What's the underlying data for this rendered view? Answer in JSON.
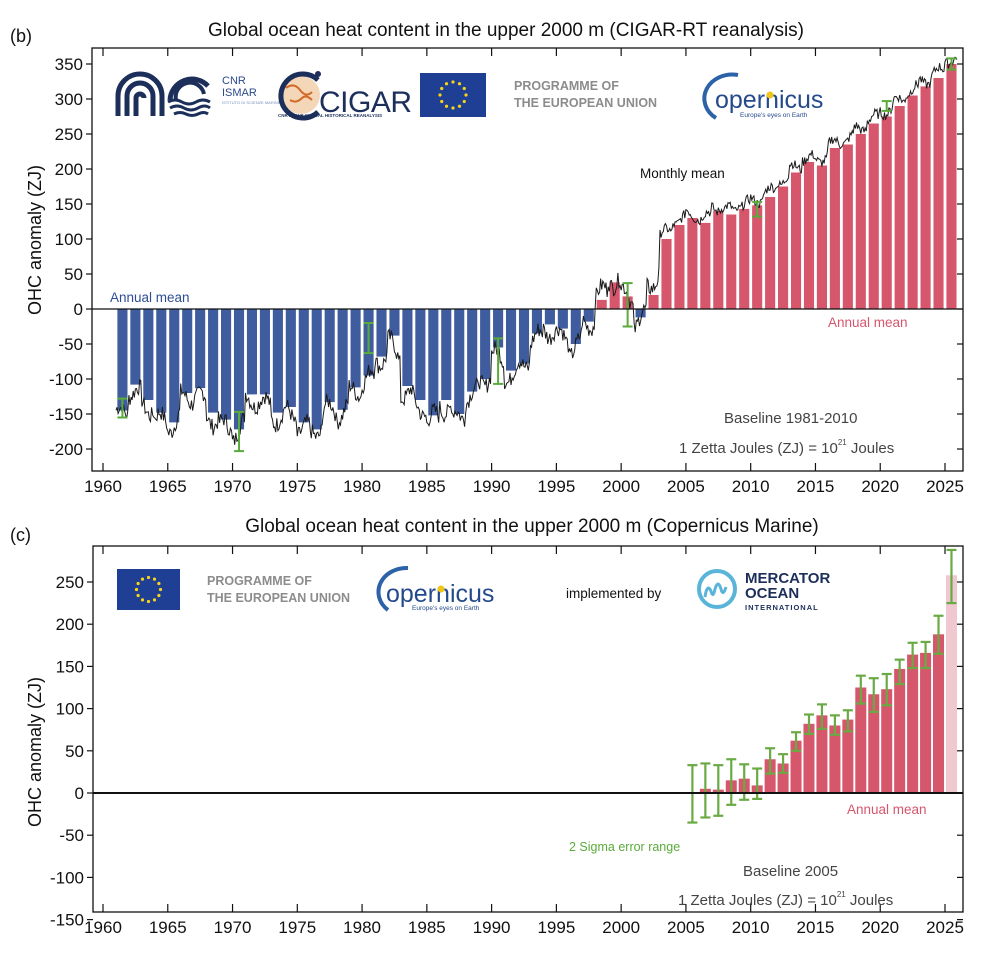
{
  "chart_data": [
    {
      "panel_label": "(b)",
      "type": "bar",
      "title": "Global ocean heat content in the upper 2000 m (CIGAR-RT reanalysis)",
      "xlabel": "",
      "ylabel": "OHC anomaly (ZJ)",
      "xlim": [
        1958,
        2027
      ],
      "ylim": [
        -210,
        370
      ],
      "xticks": [
        1960,
        1965,
        1970,
        1975,
        1980,
        1985,
        1990,
        1995,
        2000,
        2005,
        2010,
        2015,
        2020,
        2025
      ],
      "yticks": [
        -200,
        -150,
        -100,
        -50,
        0,
        50,
        100,
        150,
        200,
        250,
        300,
        350
      ],
      "grid": false,
      "colors": {
        "negative": "#3f5c9e",
        "positive": "#d6566c",
        "monthly": "#1a1a1a",
        "error": "#5aab3c"
      },
      "categories": [
        1961,
        1962,
        1963,
        1964,
        1965,
        1966,
        1967,
        1968,
        1969,
        1970,
        1971,
        1972,
        1973,
        1974,
        1975,
        1976,
        1977,
        1978,
        1979,
        1980,
        1981,
        1982,
        1983,
        1984,
        1985,
        1986,
        1987,
        1988,
        1989,
        1990,
        1991,
        1992,
        1993,
        1994,
        1995,
        1996,
        1997,
        1998,
        1999,
        2000,
        2001,
        2002,
        2003,
        2004,
        2005,
        2006,
        2007,
        2008,
        2009,
        2010,
        2011,
        2012,
        2013,
        2014,
        2015,
        2016,
        2017,
        2018,
        2019,
        2020,
        2021,
        2022,
        2023,
        2024,
        2025
      ],
      "values": [
        -145,
        -108,
        -130,
        -148,
        -162,
        -120,
        -113,
        -148,
        -158,
        -172,
        -122,
        -122,
        -148,
        -140,
        -162,
        -172,
        -133,
        -144,
        -112,
        -95,
        -68,
        -38,
        -110,
        -130,
        -152,
        -130,
        -150,
        -118,
        -100,
        -55,
        -88,
        -78,
        -35,
        -22,
        -28,
        -50,
        -18,
        13,
        38,
        18,
        -12,
        20,
        100,
        120,
        130,
        123,
        140,
        135,
        143,
        148,
        160,
        175,
        195,
        210,
        205,
        230,
        235,
        250,
        265,
        275,
        290,
        305,
        318,
        330,
        350
      ],
      "series": [
        {
          "name": "Annual mean",
          "values_ref": "values"
        },
        {
          "name": "Monthly mean",
          "values_ref": "monthly"
        }
      ],
      "error_bars": [
        {
          "year": 1961,
          "low": -155,
          "high": -128
        },
        {
          "year": 1970,
          "low": -203,
          "high": -147
        },
        {
          "year": 1980,
          "low": -63,
          "high": -20
        },
        {
          "year": 1990,
          "low": -107,
          "high": -42
        },
        {
          "year": 2000,
          "low": -25,
          "high": 37
        },
        {
          "year": 2010,
          "low": 132,
          "high": 153
        },
        {
          "year": 2020,
          "low": 283,
          "high": 297
        },
        {
          "year": 2025,
          "low": 342,
          "high": 358
        }
      ],
      "annotations": [
        {
          "text": "Annual mean",
          "color": "#3f5c9e",
          "position": "upper-left-of-zero"
        },
        {
          "text": "Annual mean",
          "color": "#d6566c",
          "position": "below-zero-right"
        },
        {
          "text": "Monthly mean",
          "color": "#111111",
          "position": "middle-right"
        },
        {
          "text": "Baseline 1981-2010",
          "color": "#444444",
          "position": "bottom-right"
        },
        {
          "text": "1 Zetta Joules (ZJ) = 10^21 Joules",
          "color": "#444444",
          "position": "bottom-right"
        }
      ],
      "legend": "none"
    },
    {
      "panel_label": "(c)",
      "type": "bar",
      "title": "Global ocean heat content in the upper 2000 m (Copernicus Marine)",
      "xlabel": "",
      "ylabel": "OHC anomaly (ZJ)",
      "xlim": [
        1958,
        2027
      ],
      "ylim": [
        -160,
        290
      ],
      "xticks": [
        1960,
        1965,
        1970,
        1975,
        1980,
        1985,
        1990,
        1995,
        2000,
        2005,
        2010,
        2015,
        2020,
        2025
      ],
      "yticks": [
        -150,
        -100,
        -50,
        0,
        50,
        100,
        150,
        200,
        250
      ],
      "grid": false,
      "colors": {
        "bar": "#d6566c",
        "provisional": "#f0c8d0",
        "error": "#6aaa44"
      },
      "categories": [
        2005,
        2006,
        2007,
        2008,
        2009,
        2010,
        2011,
        2012,
        2013,
        2014,
        2015,
        2016,
        2017,
        2018,
        2019,
        2020,
        2021,
        2022,
        2023,
        2024,
        2025
      ],
      "values": [
        0,
        5,
        4,
        15,
        17,
        9,
        40,
        35,
        62,
        82,
        92,
        80,
        87,
        125,
        117,
        123,
        147,
        164,
        166,
        188,
        258
      ],
      "provisional": [
        false,
        false,
        false,
        false,
        false,
        false,
        false,
        false,
        false,
        false,
        false,
        false,
        false,
        false,
        false,
        false,
        false,
        false,
        false,
        false,
        true
      ],
      "error_low": [
        -35,
        -29,
        -27,
        -14,
        -8,
        -7,
        23,
        24,
        50,
        70,
        76,
        69,
        73,
        106,
        96,
        104,
        129,
        148,
        148,
        165,
        225
      ],
      "error_high": [
        33,
        35,
        33,
        40,
        34,
        29,
        53,
        46,
        72,
        93,
        105,
        92,
        98,
        139,
        136,
        141,
        158,
        178,
        179,
        210,
        288
      ],
      "annotations": [
        {
          "text": "Annual mean",
          "color": "#d6566c",
          "position": "below-zero-right"
        },
        {
          "text": "2 Sigma error range",
          "color": "#5aab3c",
          "position": "below-zero-middle"
        },
        {
          "text": "Baseline 2005",
          "color": "#444444",
          "position": "bottom-right"
        },
        {
          "text": "1 Zetta Joules (ZJ) = 10^21 Joules",
          "color": "#444444",
          "position": "bottom-right"
        }
      ],
      "legend": "none"
    }
  ],
  "panel_b": {
    "label": "(b)",
    "title": "Global ocean heat content in the upper 2000 m (CIGAR-RT reanalysis)",
    "ylabel": "OHC anomaly (ZJ)",
    "annual_mean_neg": "Annual mean",
    "annual_mean_pos": "Annual mean",
    "monthly_mean": "Monthly mean",
    "baseline": "Baseline 1981-2010",
    "zj_prefix": "1 Zetta Joules (ZJ) = 10",
    "zj_exp": "21",
    "zj_suffix": " Joules",
    "logos": {
      "cnr_ismar_title_1": "CNR",
      "cnr_ismar_title_2": "ISMAR",
      "cnr_ismar_sub": "ISTITUTO DI SCIENZE MARINE",
      "cigar": "CIGAR",
      "cigar_sub": "CNR ISMAR GLOBAL HISTORICAL REANALYSIS",
      "programme_1": "PROGRAMME OF",
      "programme_2": "THE EUROPEAN UNION",
      "copernicus": "opernicus",
      "copernicus_c": "C",
      "copernicus_tag": "Europe's eyes on Earth"
    }
  },
  "panel_c": {
    "label": "(c)",
    "title": "Global ocean heat content in the upper 2000 m (Copernicus Marine)",
    "ylabel": "OHC anomaly (ZJ)",
    "annual_mean": "Annual mean",
    "sigma": "2 Sigma error range",
    "baseline": "Baseline 2005",
    "zj_prefix": "1 Zetta Joules (ZJ) = 10",
    "zj_exp": "21",
    "zj_suffix": " Joules",
    "logos": {
      "programme_1": "PROGRAMME OF",
      "programme_2": "THE EUROPEAN UNION",
      "copernicus": "opernicus",
      "copernicus_c": "C",
      "copernicus_tag": "Europe's eyes on Earth",
      "implemented_by": "implemented by",
      "mercator_1": "MERCATOR",
      "mercator_2": "OCEAN",
      "mercator_3": "INTERNATIONAL"
    }
  }
}
